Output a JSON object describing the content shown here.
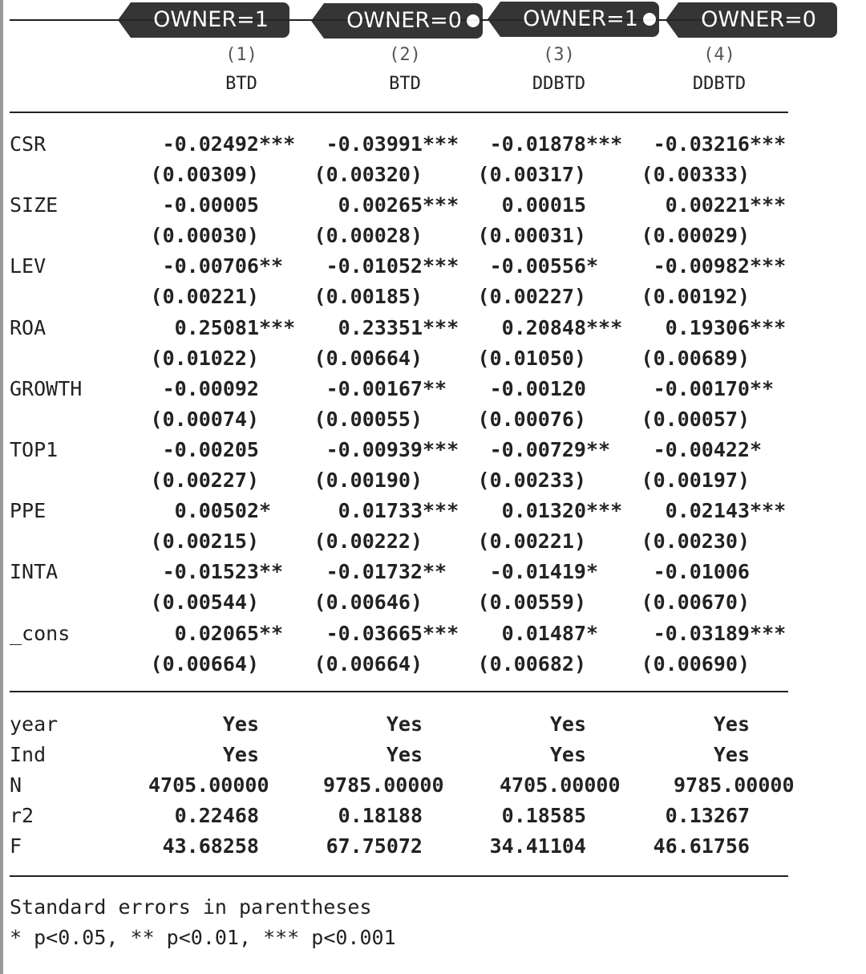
{
  "tags": [
    {
      "label": "OWNER=1",
      "dot": false
    },
    {
      "label": "OWNER=0",
      "dot": true
    },
    {
      "label": "OWNER=1",
      "dot": true
    },
    {
      "label": "OWNER=0",
      "dot": false
    }
  ],
  "columns": [
    {
      "num": "(1)",
      "dep": "BTD"
    },
    {
      "num": "(2)",
      "dep": "BTD"
    },
    {
      "num": "(3)",
      "dep": "DDBTD"
    },
    {
      "num": "(4)",
      "dep": "DDBTD"
    }
  ],
  "variables": [
    {
      "name": "CSR",
      "coef": [
        [
          "-0.02492",
          "***"
        ],
        [
          "-0.03991",
          "***"
        ],
        [
          "-0.01878",
          "***"
        ],
        [
          "-0.03216",
          "***"
        ]
      ],
      "se": [
        "(0.00309)",
        "(0.00320)",
        "(0.00317)",
        "(0.00333)"
      ]
    },
    {
      "name": "SIZE",
      "coef": [
        [
          "-0.00005",
          ""
        ],
        [
          "0.00265",
          "***"
        ],
        [
          "0.00015",
          ""
        ],
        [
          "0.00221",
          "***"
        ]
      ],
      "se": [
        "(0.00030)",
        "(0.00028)",
        "(0.00031)",
        "(0.00029)"
      ]
    },
    {
      "name": "LEV",
      "coef": [
        [
          "-0.00706",
          "**"
        ],
        [
          "-0.01052",
          "***"
        ],
        [
          "-0.00556",
          "*"
        ],
        [
          "-0.00982",
          "***"
        ]
      ],
      "se": [
        "(0.00221)",
        "(0.00185)",
        "(0.00227)",
        "(0.00192)"
      ]
    },
    {
      "name": "ROA",
      "coef": [
        [
          "0.25081",
          "***"
        ],
        [
          "0.23351",
          "***"
        ],
        [
          "0.20848",
          "***"
        ],
        [
          "0.19306",
          "***"
        ]
      ],
      "se": [
        "(0.01022)",
        "(0.00664)",
        "(0.01050)",
        "(0.00689)"
      ]
    },
    {
      "name": "GROWTH",
      "coef": [
        [
          "-0.00092",
          ""
        ],
        [
          "-0.00167",
          "**"
        ],
        [
          "-0.00120",
          ""
        ],
        [
          "-0.00170",
          "**"
        ]
      ],
      "se": [
        "(0.00074)",
        "(0.00055)",
        "(0.00076)",
        "(0.00057)"
      ]
    },
    {
      "name": "TOP1",
      "coef": [
        [
          "-0.00205",
          ""
        ],
        [
          "-0.00939",
          "***"
        ],
        [
          "-0.00729",
          "**"
        ],
        [
          "-0.00422",
          "*"
        ]
      ],
      "se": [
        "(0.00227)",
        "(0.00190)",
        "(0.00233)",
        "(0.00197)"
      ]
    },
    {
      "name": "PPE",
      "coef": [
        [
          "0.00502",
          "*"
        ],
        [
          "0.01733",
          "***"
        ],
        [
          "0.01320",
          "***"
        ],
        [
          "0.02143",
          "***"
        ]
      ],
      "se": [
        "(0.00215)",
        "(0.00222)",
        "(0.00221)",
        "(0.00230)"
      ]
    },
    {
      "name": "INTA",
      "coef": [
        [
          "-0.01523",
          "**"
        ],
        [
          "-0.01732",
          "**"
        ],
        [
          "-0.01419",
          "*"
        ],
        [
          "-0.01006",
          ""
        ]
      ],
      "se": [
        "(0.00544)",
        "(0.00646)",
        "(0.00559)",
        "(0.00670)"
      ]
    },
    {
      "name": "_cons",
      "coef": [
        [
          "0.02065",
          "**"
        ],
        [
          "-0.03665",
          "***"
        ],
        [
          "0.01487",
          "*"
        ],
        [
          "-0.03189",
          "***"
        ]
      ],
      "se": [
        "(0.00664)",
        "(0.00664)",
        "(0.00682)",
        "(0.00690)"
      ]
    }
  ],
  "stats": [
    {
      "name": "year",
      "values": [
        "Yes",
        "Yes",
        "Yes",
        "Yes"
      ]
    },
    {
      "name": "Ind",
      "values": [
        "Yes",
        "Yes",
        "Yes",
        "Yes"
      ]
    },
    {
      "name": "N",
      "values": [
        "4705.00000",
        "9785.00000",
        "4705.00000",
        "9785.00000"
      ]
    },
    {
      "name": "r2",
      "values": [
        "0.22468",
        "0.18188",
        "0.18585",
        "0.13267"
      ]
    },
    {
      "name": "F",
      "values": [
        "43.68258",
        "67.75072",
        "34.41104",
        "46.61756"
      ]
    }
  ],
  "notes": [
    "Standard errors in parentheses",
    "* p<0.05, ** p<0.01, *** p<0.001"
  ]
}
